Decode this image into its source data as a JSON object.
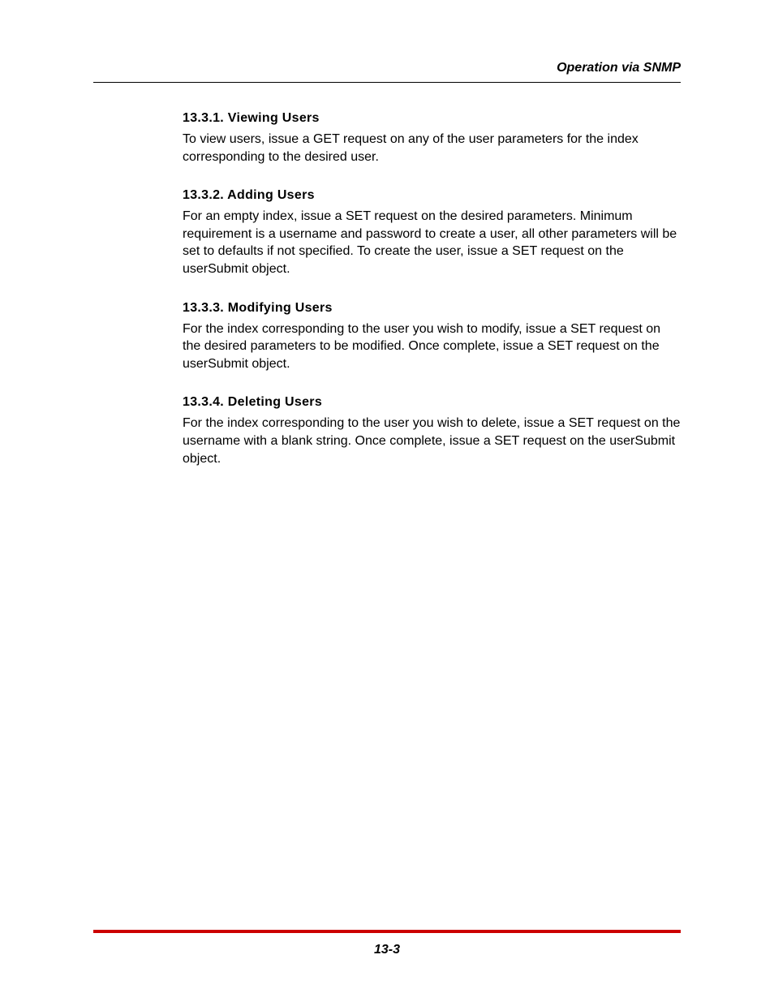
{
  "header": {
    "title": "Operation via SNMP"
  },
  "sections": [
    {
      "heading": "13.3.1.  Viewing Users",
      "body": "To view users, issue a GET request on any of the user parameters for the index corresponding to the desired user."
    },
    {
      "heading": "13.3.2.  Adding Users",
      "body": "For an empty index, issue a SET request on the desired parameters.  Minimum requirement is a username and password to create a user, all other parameters will be set to defaults if not specified.  To create the user, issue a SET request on the userSubmit object."
    },
    {
      "heading": "13.3.3.  Modifying Users",
      "body": "For the index corresponding to the user you wish to modify, issue a SET request on the desired parameters to be modified.  Once complete, issue a SET request on the userSubmit object."
    },
    {
      "heading": "13.3.4.  Deleting Users",
      "body": "For the index corresponding to the user you wish to delete, issue a SET request on the username with a blank string.  Once complete, issue a SET request on the userSubmit object."
    }
  ],
  "footer": {
    "pageNumber": "13-3",
    "lineColor": "#cc0000"
  }
}
